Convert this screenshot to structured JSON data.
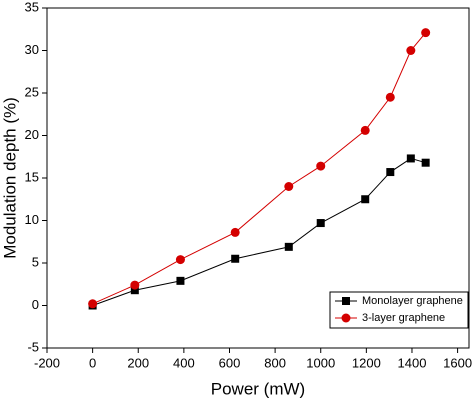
{
  "chart_data": {
    "type": "line",
    "x_label": "Power (mW)",
    "y_label": "Modulation depth (%)",
    "x": [
      0,
      185,
      385,
      625,
      860,
      1000,
      1195,
      1305,
      1395,
      1460
    ],
    "series": [
      {
        "name": "Monolayer graphene",
        "color": "#000000",
        "marker": "square",
        "values": [
          0,
          1.8,
          2.9,
          5.5,
          6.9,
          9.7,
          12.5,
          15.7,
          17.3,
          16.8
        ]
      },
      {
        "name": "3-layer graphene",
        "color": "#d40000",
        "marker": "circle",
        "values": [
          0.2,
          2.4,
          5.4,
          8.6,
          14.0,
          16.4,
          20.6,
          24.5,
          30.0,
          32.1
        ]
      }
    ],
    "xlim": [
      -200,
      1650
    ],
    "xticks": [
      -200,
      0,
      200,
      400,
      600,
      800,
      1000,
      1200,
      1400,
      1600
    ],
    "ylim": [
      -5,
      35
    ],
    "yticks": [
      -5,
      0,
      5,
      10,
      15,
      20,
      25,
      30,
      35
    ],
    "legend": "lower right"
  }
}
